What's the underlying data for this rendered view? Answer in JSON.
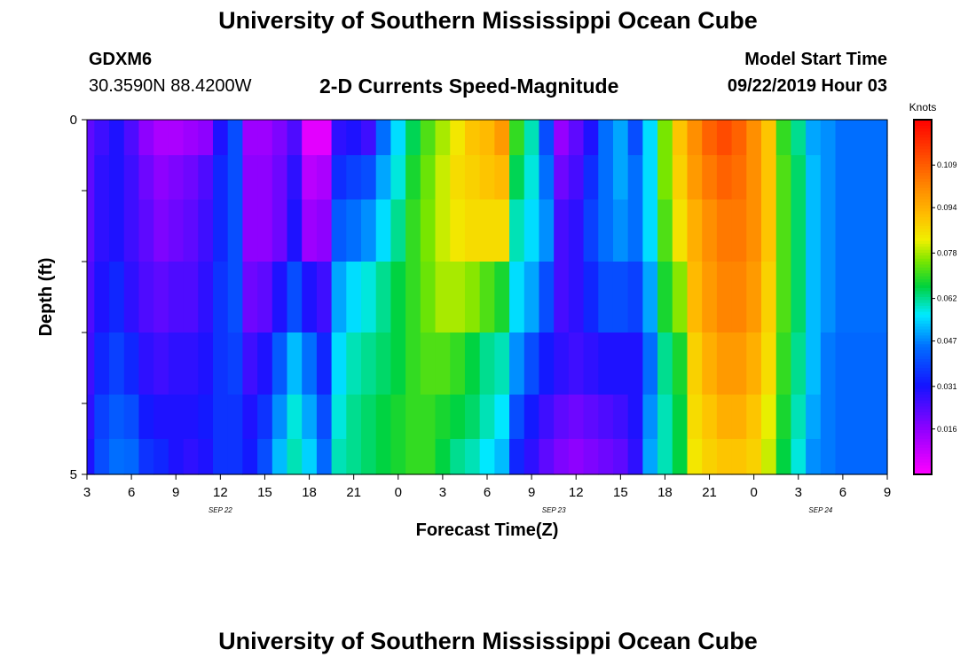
{
  "header": {
    "title": "University of Southern Mississippi Ocean Cube",
    "station_id": "GDXM6",
    "location": "30.3590N 88.4200W",
    "plot_title": "2-D Currents Speed-Magnitude",
    "model_start_label": "Model Start Time",
    "model_start_value": "09/22/2019 Hour 03"
  },
  "footer": {
    "title": "University of Southern Mississippi Ocean Cube"
  },
  "chart_data": {
    "type": "heatmap",
    "title": "2-D Currents Speed-Magnitude",
    "xlabel": "Forecast Time(Z)",
    "ylabel": "Depth (ft)",
    "x_tick_labels": [
      "3",
      "6",
      "9",
      "12",
      "15",
      "18",
      "21",
      "0",
      "3",
      "6",
      "9",
      "12",
      "15",
      "18",
      "21",
      "0",
      "3",
      "6",
      "9"
    ],
    "x_start_hour": 3,
    "x_step_hours": 3,
    "date_labels": [
      {
        "text": "SEP 22",
        "at_tick": 3
      },
      {
        "text": "SEP 23",
        "at_tick": 10.5
      },
      {
        "text": "SEP 24",
        "at_tick": 16.5
      }
    ],
    "y_tick_labels": [
      "0",
      "5"
    ],
    "ylim": [
      0,
      5
    ],
    "y_minor_ticks": 5,
    "colorbar": {
      "unit": "Knots",
      "min": 0.0,
      "max": 0.125,
      "tick_values": [
        0.016,
        0.031,
        0.047,
        0.062,
        0.078,
        0.094,
        0.109
      ],
      "tick_labels": [
        "0.016",
        "0.031",
        "0.047",
        "0.062",
        "0.078",
        "0.094",
        "0.109"
      ]
    },
    "time_columns_hours": [
      3,
      4,
      5,
      6,
      7,
      8,
      9,
      10,
      11,
      12,
      13,
      14,
      15,
      16,
      17,
      18,
      19,
      20,
      21,
      22,
      23,
      24,
      25,
      26,
      27,
      28,
      29,
      30,
      31,
      32,
      33,
      34,
      35,
      36,
      37,
      38,
      39,
      40,
      41,
      42,
      43,
      44,
      45,
      46,
      47,
      48,
      49,
      50,
      51,
      52,
      53,
      54
    ],
    "depth_rows": [
      0.25,
      0.75,
      1.5,
      2.5,
      3.5,
      4.25,
      4.75
    ],
    "values": [
      [
        0.022,
        0.026,
        0.03,
        0.024,
        0.016,
        0.012,
        0.012,
        0.014,
        0.016,
        0.03,
        0.04,
        0.014,
        0.014,
        0.018,
        0.024,
        0.004,
        0.004,
        0.028,
        0.03,
        0.026,
        0.045,
        0.055,
        0.065,
        0.072,
        0.078,
        0.084,
        0.09,
        0.092,
        0.098,
        0.07,
        0.06,
        0.04,
        0.015,
        0.022,
        0.03,
        0.045,
        0.05,
        0.04,
        0.055,
        0.075,
        0.09,
        0.1,
        0.108,
        0.112,
        0.108,
        0.1,
        0.09,
        0.07,
        0.062,
        0.05,
        0.048,
        0.045
      ],
      [
        0.022,
        0.028,
        0.03,
        0.026,
        0.02,
        0.016,
        0.018,
        0.02,
        0.024,
        0.034,
        0.04,
        0.016,
        0.016,
        0.02,
        0.028,
        0.01,
        0.012,
        0.035,
        0.038,
        0.04,
        0.05,
        0.058,
        0.068,
        0.074,
        0.08,
        0.086,
        0.088,
        0.09,
        0.092,
        0.065,
        0.058,
        0.045,
        0.02,
        0.025,
        0.035,
        0.045,
        0.05,
        0.045,
        0.055,
        0.075,
        0.088,
        0.098,
        0.104,
        0.108,
        0.106,
        0.1,
        0.09,
        0.072,
        0.064,
        0.052,
        0.048,
        0.045
      ],
      [
        0.022,
        0.028,
        0.03,
        0.026,
        0.022,
        0.018,
        0.02,
        0.022,
        0.026,
        0.034,
        0.04,
        0.016,
        0.016,
        0.02,
        0.03,
        0.014,
        0.016,
        0.042,
        0.045,
        0.048,
        0.055,
        0.062,
        0.07,
        0.075,
        0.08,
        0.084,
        0.086,
        0.086,
        0.086,
        0.06,
        0.055,
        0.048,
        0.025,
        0.028,
        0.038,
        0.045,
        0.048,
        0.045,
        0.055,
        0.072,
        0.085,
        0.094,
        0.1,
        0.104,
        0.104,
        0.1,
        0.09,
        0.072,
        0.064,
        0.052,
        0.048,
        0.045
      ],
      [
        0.024,
        0.03,
        0.034,
        0.028,
        0.024,
        0.022,
        0.024,
        0.024,
        0.028,
        0.036,
        0.04,
        0.02,
        0.022,
        0.03,
        0.04,
        0.03,
        0.026,
        0.05,
        0.055,
        0.058,
        0.062,
        0.066,
        0.07,
        0.074,
        0.078,
        0.078,
        0.076,
        0.072,
        0.068,
        0.055,
        0.05,
        0.04,
        0.025,
        0.028,
        0.034,
        0.04,
        0.04,
        0.038,
        0.05,
        0.068,
        0.076,
        0.092,
        0.098,
        0.102,
        0.102,
        0.098,
        0.088,
        0.072,
        0.064,
        0.052,
        0.048,
        0.045
      ],
      [
        0.026,
        0.034,
        0.038,
        0.034,
        0.028,
        0.026,
        0.028,
        0.028,
        0.03,
        0.036,
        0.038,
        0.026,
        0.03,
        0.042,
        0.052,
        0.045,
        0.034,
        0.055,
        0.06,
        0.062,
        0.064,
        0.066,
        0.07,
        0.072,
        0.072,
        0.07,
        0.066,
        0.062,
        0.06,
        0.048,
        0.04,
        0.032,
        0.028,
        0.026,
        0.028,
        0.03,
        0.03,
        0.03,
        0.045,
        0.062,
        0.068,
        0.088,
        0.094,
        0.098,
        0.098,
        0.094,
        0.086,
        0.07,
        0.062,
        0.052,
        0.046,
        0.044
      ],
      [
        0.028,
        0.038,
        0.042,
        0.04,
        0.032,
        0.03,
        0.03,
        0.03,
        0.032,
        0.036,
        0.036,
        0.03,
        0.036,
        0.048,
        0.058,
        0.05,
        0.04,
        0.058,
        0.062,
        0.064,
        0.066,
        0.068,
        0.07,
        0.07,
        0.068,
        0.066,
        0.064,
        0.06,
        0.056,
        0.04,
        0.032,
        0.026,
        0.022,
        0.02,
        0.022,
        0.024,
        0.026,
        0.03,
        0.048,
        0.06,
        0.066,
        0.086,
        0.09,
        0.094,
        0.094,
        0.09,
        0.082,
        0.068,
        0.06,
        0.05,
        0.046,
        0.044
      ],
      [
        0.03,
        0.04,
        0.045,
        0.044,
        0.036,
        0.034,
        0.03,
        0.028,
        0.03,
        0.036,
        0.036,
        0.032,
        0.04,
        0.052,
        0.06,
        0.054,
        0.044,
        0.06,
        0.062,
        0.064,
        0.066,
        0.068,
        0.07,
        0.07,
        0.066,
        0.062,
        0.06,
        0.056,
        0.052,
        0.034,
        0.028,
        0.022,
        0.018,
        0.016,
        0.018,
        0.02,
        0.022,
        0.028,
        0.05,
        0.06,
        0.066,
        0.084,
        0.088,
        0.09,
        0.09,
        0.088,
        0.08,
        0.066,
        0.058,
        0.048,
        0.046,
        0.044
      ]
    ]
  }
}
